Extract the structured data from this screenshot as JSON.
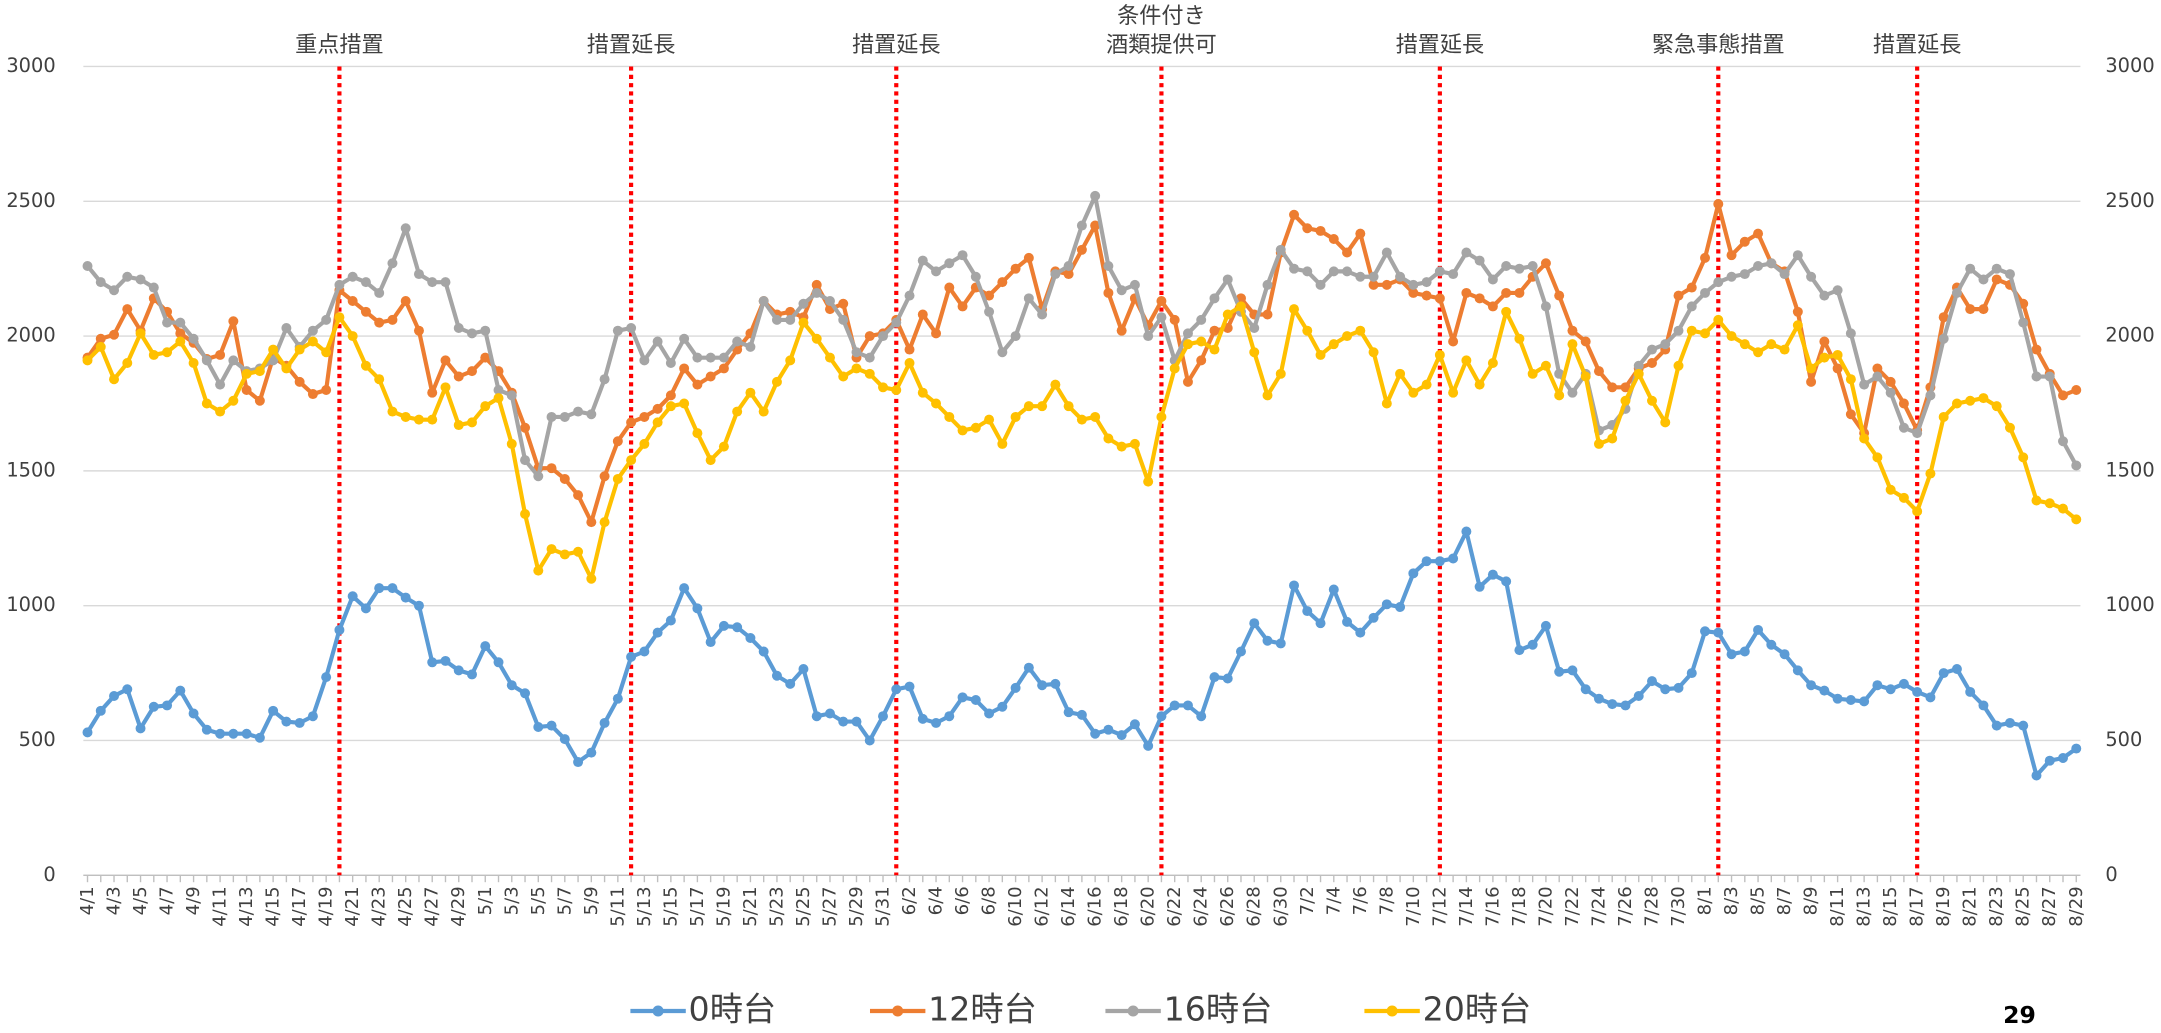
{
  "chart_data": {
    "type": "line",
    "categories": [
      "4/1",
      null,
      "4/3",
      null,
      "4/5",
      null,
      "4/7",
      null,
      "4/9",
      null,
      "4/11",
      null,
      "4/13",
      null,
      "4/15",
      null,
      "4/17",
      null,
      "4/19",
      null,
      "4/21",
      null,
      "4/23",
      null,
      "4/25",
      null,
      "4/27",
      null,
      "4/29",
      null,
      "5/1",
      null,
      "5/3",
      null,
      "5/5",
      null,
      "5/7",
      null,
      "5/9",
      null,
      "5/11",
      null,
      "5/13",
      null,
      "5/15",
      null,
      "5/17",
      null,
      "5/19",
      null,
      "5/21",
      null,
      "5/23",
      null,
      "5/25",
      null,
      "5/27",
      null,
      "5/29",
      null,
      "5/31",
      null,
      "6/2",
      null,
      "6/4",
      null,
      "6/6",
      null,
      "6/8",
      null,
      "6/10",
      null,
      "6/12",
      null,
      "6/14",
      null,
      "6/16",
      null,
      "6/18",
      null,
      "6/20",
      null,
      "6/22",
      null,
      "6/24",
      null,
      "6/26",
      null,
      "6/28",
      null,
      "6/30",
      null,
      "7/2",
      null,
      "7/4",
      null,
      "7/6",
      null,
      "7/8",
      null,
      "7/10",
      null,
      "7/12",
      null,
      "7/14",
      null,
      "7/16",
      null,
      "7/18",
      null,
      "7/20",
      null,
      "7/22",
      null,
      "7/24",
      null,
      "7/26",
      null,
      "7/28",
      null,
      "7/30",
      null,
      "8/1",
      null,
      "8/3",
      null,
      "8/5",
      null,
      "8/7",
      null,
      "8/9",
      null,
      "8/11",
      null,
      "8/13",
      null,
      "8/15",
      null,
      "8/17",
      null,
      "8/19",
      null,
      "8/21",
      null,
      "8/23",
      null,
      "8/25",
      null,
      "8/27",
      null,
      "8/29"
    ],
    "series": [
      {
        "name": "0時台",
        "color": "#5b9bd5",
        "values": [
          530,
          610,
          665,
          690,
          545,
          625,
          630,
          685,
          600,
          540,
          525,
          525,
          525,
          510,
          610,
          570,
          565,
          590,
          735,
          910,
          1035,
          990,
          1065,
          1065,
          1030,
          1000,
          790,
          795,
          760,
          745,
          850,
          790,
          705,
          675,
          550,
          555,
          505,
          420,
          455,
          565,
          655,
          810,
          830,
          900,
          945,
          1065,
          990,
          865,
          925,
          920,
          880,
          830,
          740,
          710,
          765,
          590,
          600,
          570,
          570,
          500,
          590,
          690,
          700,
          580,
          565,
          590,
          660,
          650,
          600,
          625,
          695,
          770,
          705,
          710,
          605,
          595,
          525,
          540,
          520,
          560,
          480,
          590,
          630,
          630,
          590,
          735,
          730,
          830,
          935,
          870,
          860,
          1075,
          980,
          935,
          1060,
          940,
          900,
          955,
          1005,
          995,
          1120,
          1165,
          1165,
          1175,
          1275,
          1070,
          1115,
          1090,
          835,
          855,
          925,
          755,
          760,
          690,
          655,
          635,
          630,
          665,
          720,
          690,
          695,
          750,
          905,
          900,
          820,
          830,
          910,
          855,
          820,
          760,
          705,
          685,
          655,
          650,
          645,
          705,
          690,
          710,
          680,
          660,
          750,
          765,
          680,
          630,
          555,
          565,
          555,
          370,
          425,
          435,
          470
        ]
      },
      {
        "name": "12時台",
        "color": "#ed7d31",
        "values": [
          1920,
          1990,
          2005,
          2100,
          2020,
          2140,
          2090,
          2010,
          1975,
          1915,
          1930,
          2055,
          1800,
          1760,
          1920,
          1890,
          1830,
          1785,
          1800,
          2170,
          2130,
          2090,
          2050,
          2060,
          2130,
          2020,
          1790,
          1910,
          1850,
          1870,
          1920,
          1870,
          1790,
          1660,
          1510,
          1510,
          1470,
          1410,
          1310,
          1480,
          1610,
          1680,
          1700,
          1730,
          1780,
          1880,
          1820,
          1850,
          1880,
          1950,
          2010,
          2130,
          2080,
          2090,
          2070,
          2190,
          2100,
          2120,
          1920,
          2000,
          2010,
          2060,
          1950,
          2080,
          2010,
          2180,
          2110,
          2180,
          2150,
          2200,
          2250,
          2290,
          2100,
          2240,
          2230,
          2320,
          2410,
          2160,
          2020,
          2140,
          2040,
          2130,
          2060,
          1830,
          1910,
          2020,
          2030,
          2140,
          2080,
          2080,
          2310,
          2450,
          2400,
          2390,
          2360,
          2310,
          2380,
          2190,
          2190,
          2210,
          2160,
          2150,
          2140,
          1980,
          2160,
          2140,
          2110,
          2160,
          2160,
          2220,
          2270,
          2150,
          2020,
          1980,
          1870,
          1810,
          1810,
          1880,
          1900,
          1950,
          2150,
          2180,
          2290,
          2490,
          2300,
          2350,
          2380,
          2270,
          2240,
          2090,
          1830,
          1980,
          1880,
          1710,
          1640,
          1880,
          1830,
          1750,
          1650,
          1810,
          2070,
          2180,
          2100,
          2100,
          2210,
          2190,
          2120,
          1950,
          1860,
          1780,
          1800
        ]
      },
      {
        "name": "16時台",
        "color": "#a5a5a5",
        "values": [
          2260,
          2200,
          2170,
          2220,
          2210,
          2180,
          2050,
          2050,
          1990,
          1910,
          1820,
          1910,
          1870,
          1880,
          1910,
          2030,
          1960,
          2020,
          2060,
          2190,
          2220,
          2200,
          2160,
          2270,
          2400,
          2230,
          2200,
          2200,
          2030,
          2010,
          2020,
          1800,
          1780,
          1540,
          1480,
          1700,
          1700,
          1720,
          1710,
          1840,
          2020,
          2030,
          1910,
          1980,
          1900,
          1990,
          1920,
          1920,
          1920,
          1980,
          1960,
          2130,
          2060,
          2060,
          2120,
          2160,
          2130,
          2060,
          1940,
          1920,
          2000,
          2050,
          2150,
          2280,
          2240,
          2270,
          2300,
          2220,
          2090,
          1940,
          2000,
          2140,
          2080,
          2230,
          2260,
          2410,
          2520,
          2260,
          2170,
          2190,
          2000,
          2070,
          1910,
          2010,
          2060,
          2140,
          2210,
          2090,
          2030,
          2190,
          2320,
          2250,
          2240,
          2190,
          2240,
          2240,
          2220,
          2220,
          2310,
          2220,
          2190,
          2200,
          2240,
          2230,
          2310,
          2280,
          2210,
          2260,
          2250,
          2260,
          2110,
          1860,
          1790,
          1860,
          1650,
          1670,
          1730,
          1890,
          1950,
          1970,
          2020,
          2110,
          2160,
          2200,
          2220,
          2230,
          2260,
          2270,
          2230,
          2300,
          2220,
          2150,
          2170,
          2010,
          1820,
          1850,
          1790,
          1660,
          1640,
          1780,
          1990,
          2160,
          2250,
          2210,
          2250,
          2230,
          2050,
          1850,
          1850,
          1610,
          1520
        ]
      },
      {
        "name": "20時台",
        "color": "#ffc000",
        "values": [
          1910,
          1960,
          1840,
          1900,
          2010,
          1930,
          1940,
          1980,
          1900,
          1750,
          1720,
          1760,
          1860,
          1870,
          1950,
          1880,
          1950,
          1980,
          1940,
          2070,
          2000,
          1890,
          1840,
          1720,
          1700,
          1690,
          1690,
          1810,
          1670,
          1680,
          1740,
          1770,
          1600,
          1340,
          1130,
          1210,
          1190,
          1200,
          1100,
          1310,
          1470,
          1540,
          1600,
          1680,
          1740,
          1750,
          1640,
          1540,
          1590,
          1720,
          1790,
          1720,
          1830,
          1910,
          2050,
          1990,
          1920,
          1850,
          1880,
          1860,
          1810,
          1800,
          1900,
          1790,
          1750,
          1700,
          1650,
          1660,
          1690,
          1600,
          1700,
          1740,
          1740,
          1820,
          1740,
          1690,
          1700,
          1620,
          1590,
          1600,
          1460,
          1700,
          1880,
          1970,
          1980,
          1950,
          2080,
          2110,
          1940,
          1780,
          1860,
          2100,
          2020,
          1930,
          1970,
          2000,
          2020,
          1940,
          1750,
          1860,
          1790,
          1820,
          1930,
          1790,
          1910,
          1820,
          1900,
          2090,
          1990,
          1860,
          1890,
          1780,
          1970,
          1850,
          1600,
          1620,
          1760,
          1860,
          1760,
          1680,
          1890,
          2020,
          2010,
          2060,
          2000,
          1970,
          1940,
          1970,
          1950,
          2040,
          1880,
          1920,
          1930,
          1840,
          1620,
          1550,
          1430,
          1400,
          1350,
          1490,
          1700,
          1750,
          1760,
          1770,
          1740,
          1660,
          1550,
          1390,
          1380,
          1360,
          1320
        ]
      }
    ],
    "ylim": [
      0,
      3000
    ],
    "yticks": [
      0,
      500,
      1000,
      1500,
      2000,
      2500,
      3000
    ],
    "y2lim": [
      0,
      3000
    ],
    "y2ticks": [
      0,
      500,
      1000,
      1500,
      2000,
      2500,
      3000
    ],
    "grid": true,
    "legend": "bottom",
    "annotations": [
      [
        "重点措置"
      ],
      [
        "措置延長"
      ],
      [
        "措置延長"
      ],
      [
        "条件付き",
        "酒類提供可"
      ],
      [
        "措置延長"
      ],
      [
        "緊急事態措置"
      ],
      [
        "措置延長"
      ]
    ]
  },
  "page_number": "29"
}
